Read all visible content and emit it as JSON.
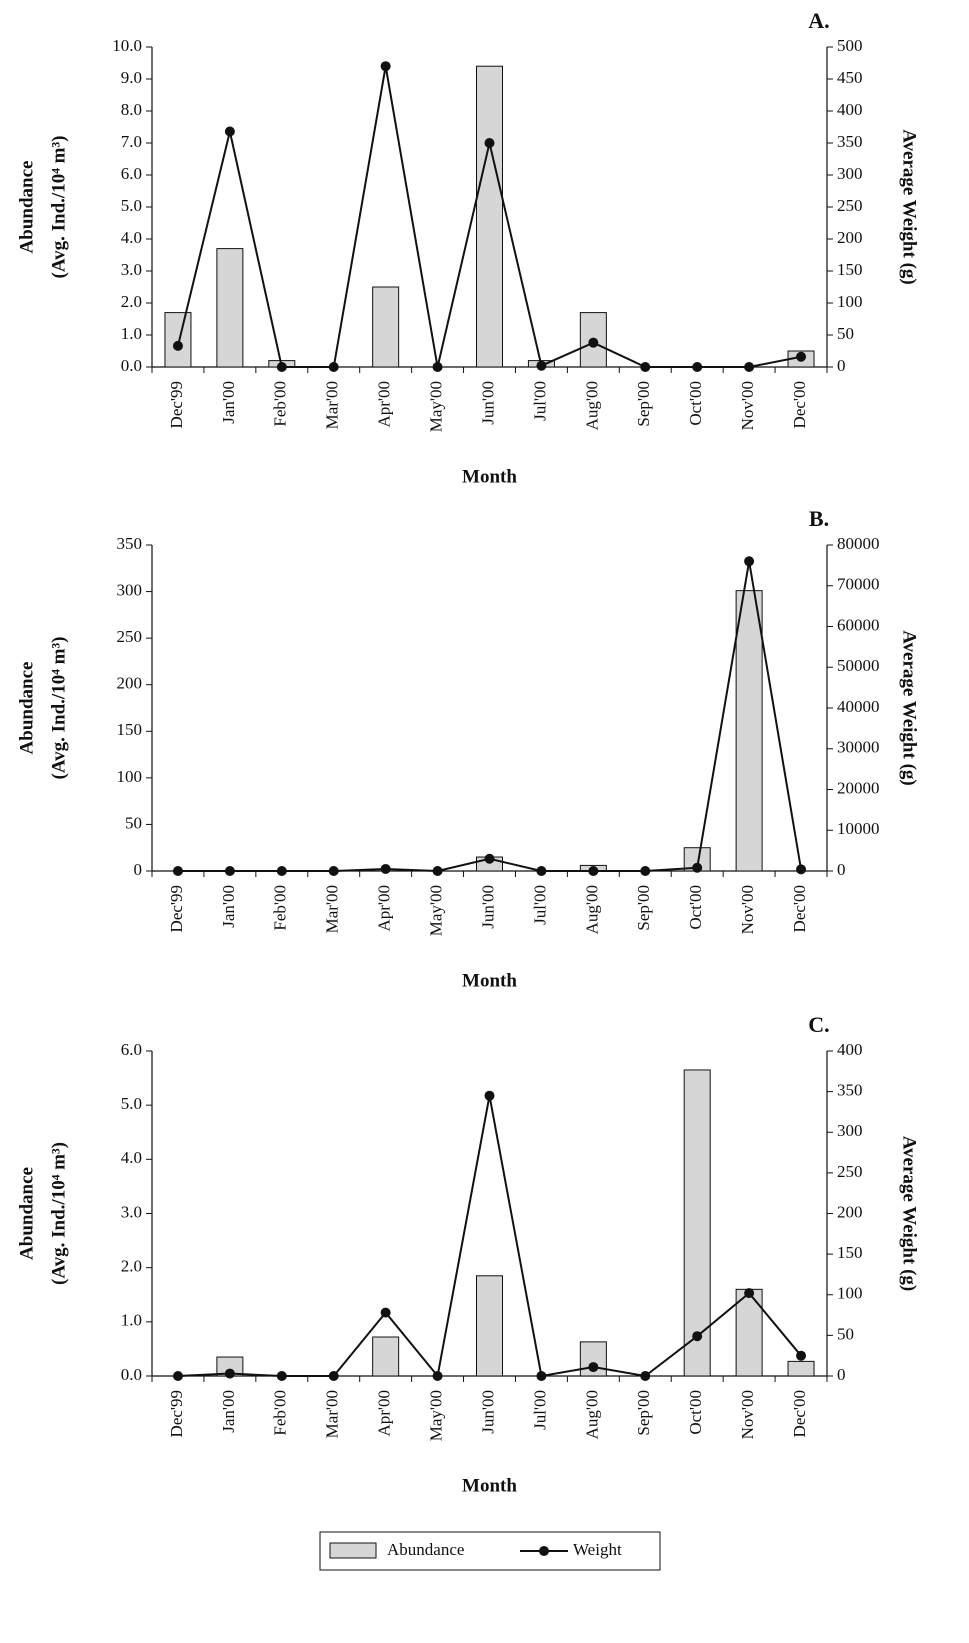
{
  "chart_data": [
    {
      "type": "combo",
      "label": "A.",
      "xlabel": "Month",
      "ylabel": [
        "Abundance",
        "(Avg. Ind./10⁴ m³)"
      ],
      "y2label": "Average Weight (g)",
      "categories": [
        "Dec'99",
        "Jan'00",
        "Feb'00",
        "Mar'00",
        "Apr'00",
        "May'00",
        "Jun'00",
        "Jul'00",
        "Aug'00",
        "Sep'00",
        "Oct'00",
        "Nov'00",
        "Dec'00"
      ],
      "series": [
        {
          "name": "Abundance",
          "type": "bar",
          "color": "#d6d6d6",
          "values": [
            1.7,
            3.7,
            0.2,
            0,
            2.5,
            0,
            9.4,
            0.2,
            1.7,
            0,
            0,
            0,
            0.5
          ]
        },
        {
          "name": "Weight",
          "type": "line",
          "axis": "y2",
          "color": "#111111",
          "values": [
            33,
            368,
            0,
            0,
            470,
            0,
            350,
            2,
            38,
            0,
            0,
            0,
            16
          ]
        }
      ],
      "ylim": [
        0,
        10
      ],
      "yticks": [
        {
          "value": 0,
          "label": "0.0"
        },
        {
          "value": 1,
          "label": "1.0"
        },
        {
          "value": 2,
          "label": "2.0"
        },
        {
          "value": 3,
          "label": "3.0"
        },
        {
          "value": 4,
          "label": "4.0"
        },
        {
          "value": 5,
          "label": "5.0"
        },
        {
          "value": 6,
          "label": "6.0"
        },
        {
          "value": 7,
          "label": "7.0"
        },
        {
          "value": 8,
          "label": "8.0"
        },
        {
          "value": 9,
          "label": "9.0"
        },
        {
          "value": 10,
          "label": "10.0"
        }
      ],
      "y2lim": [
        0,
        500
      ],
      "y2ticks": [
        0,
        50,
        100,
        150,
        200,
        250,
        300,
        350,
        400,
        450,
        500
      ]
    },
    {
      "type": "combo",
      "label": "B.",
      "xlabel": "Month",
      "ylabel": [
        "Abundance",
        "(Avg. Ind./10⁴ m³)"
      ],
      "y2label": "Average Weight (g)",
      "categories": [
        "Dec'99",
        "Jan'00",
        "Feb'00",
        "Mar'00",
        "Apr'00",
        "May'00",
        "Jun'00",
        "Jul'00",
        "Aug'00",
        "Sep'00",
        "Oct'00",
        "Nov'00",
        "Dec'00"
      ],
      "series": [
        {
          "type": "bar",
          "color": "#d6d6d6",
          "values": [
            0,
            0,
            0,
            0,
            0,
            0,
            15,
            0,
            6,
            0,
            25,
            301,
            0
          ]
        },
        {
          "type": "line",
          "axis": "y2",
          "color": "#111111",
          "values": [
            0,
            0,
            0,
            0,
            500,
            0,
            3000,
            0,
            0,
            0,
            800,
            76000,
            400
          ]
        }
      ],
      "ylim": [
        0,
        350
      ],
      "yticks": [
        0,
        50,
        100,
        150,
        200,
        250,
        300,
        350
      ],
      "y2lim": [
        0,
        80000
      ],
      "y2ticks": [
        0,
        10000,
        20000,
        30000,
        40000,
        50000,
        60000,
        70000,
        80000
      ]
    },
    {
      "type": "combo",
      "label": "C.",
      "xlabel": "Month",
      "ylabel": [
        "Abundance",
        "(Avg. Ind./10⁴ m³)"
      ],
      "y2label": "Average Weight (g)",
      "categories": [
        "Dec'99",
        "Jan'00",
        "Feb'00",
        "Mar'00",
        "Apr'00",
        "May'00",
        "Jun'00",
        "Jul'00",
        "Aug'00",
        "Sep'00",
        "Oct'00",
        "Nov'00",
        "Dec'00"
      ],
      "series": [
        {
          "type": "bar",
          "color": "#d6d6d6",
          "values": [
            0,
            0.35,
            0,
            0,
            0.72,
            0,
            1.85,
            0,
            0.63,
            0,
            5.65,
            1.6,
            0.27
          ]
        },
        {
          "type": "line",
          "axis": "y2",
          "color": "#111111",
          "values": [
            0,
            3,
            0,
            0,
            78,
            0,
            345,
            0,
            11,
            0,
            49,
            102,
            25
          ]
        }
      ],
      "ylim": [
        0,
        6
      ],
      "yticks": [
        {
          "value": 0,
          "label": "0.0"
        },
        {
          "value": 1,
          "label": "1.0"
        },
        {
          "value": 2,
          "label": "2.0"
        },
        {
          "value": 3,
          "label": "3.0"
        },
        {
          "value": 4,
          "label": "4.0"
        },
        {
          "value": 5,
          "label": "5.0"
        },
        {
          "value": 6,
          "label": "6.0"
        }
      ],
      "y2lim": [
        0,
        400
      ],
      "y2ticks": [
        0,
        50,
        100,
        150,
        200,
        250,
        300,
        350,
        400
      ]
    }
  ]
}
